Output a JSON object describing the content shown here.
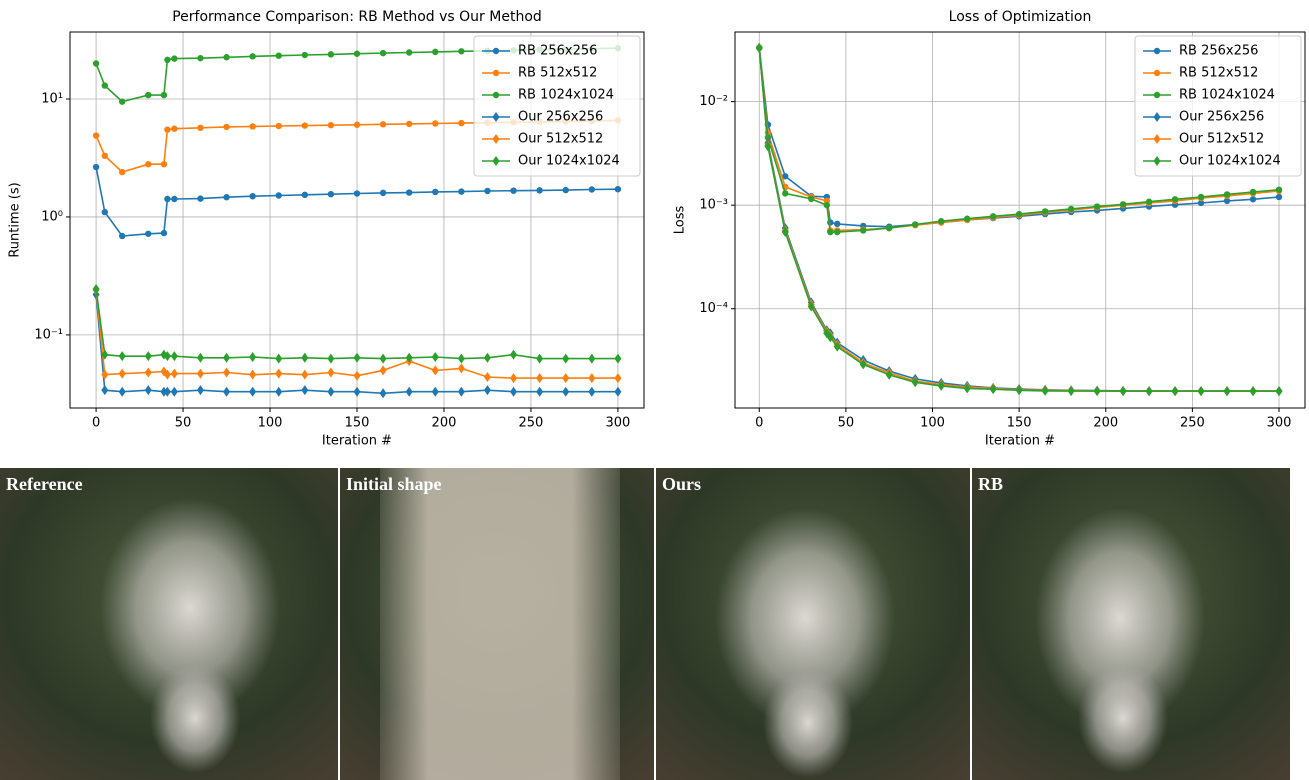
{
  "chart_data": [
    {
      "type": "line",
      "title": "Performance Comparison: RB Method vs Our Method",
      "xlabel": "Iteration #",
      "ylabel": "Runtime (s)",
      "yscale": "log",
      "grid": true,
      "legend": "upper right",
      "xlim": [
        -15,
        315
      ],
      "xticks": [
        0,
        50,
        100,
        150,
        200,
        250,
        300
      ],
      "ylim": [
        0.024,
        37
      ],
      "yticks": [
        {
          "value": 0.1,
          "label": "10⁻¹"
        },
        {
          "value": 1,
          "label": "10⁰"
        },
        {
          "value": 10,
          "label": "10¹"
        }
      ],
      "x": [
        0,
        5,
        15,
        30,
        39,
        41,
        45,
        60,
        75,
        90,
        105,
        120,
        135,
        150,
        165,
        180,
        195,
        210,
        225,
        240,
        255,
        270,
        285,
        300
      ],
      "series": [
        {
          "name": "RB 256x256",
          "color": "#1f77b4",
          "marker": "circle",
          "values": [
            2.65,
            1.1,
            0.69,
            0.72,
            0.73,
            1.42,
            1.42,
            1.43,
            1.47,
            1.5,
            1.52,
            1.54,
            1.56,
            1.58,
            1.6,
            1.61,
            1.63,
            1.64,
            1.66,
            1.67,
            1.68,
            1.69,
            1.71,
            1.72
          ]
        },
        {
          "name": "RB 512x512",
          "color": "#ff7f0e",
          "marker": "circle",
          "values": [
            4.9,
            3.3,
            2.4,
            2.8,
            2.8,
            5.5,
            5.6,
            5.7,
            5.8,
            5.85,
            5.9,
            5.95,
            6.0,
            6.05,
            6.1,
            6.15,
            6.2,
            6.25,
            6.3,
            6.35,
            6.4,
            6.45,
            6.5,
            6.6
          ]
        },
        {
          "name": "RB 1024x1024",
          "color": "#2ca02c",
          "marker": "circle",
          "values": [
            20,
            13,
            9.5,
            10.8,
            10.8,
            21.5,
            22,
            22.2,
            22.6,
            23,
            23.3,
            23.6,
            23.9,
            24.2,
            24.5,
            24.8,
            25.1,
            25.4,
            25.6,
            25.9,
            26.2,
            26.4,
            26.7,
            27
          ]
        },
        {
          "name": "Our 256x256",
          "color": "#1f77b4",
          "marker": "diamond",
          "values": [
            0.22,
            0.034,
            0.033,
            0.034,
            0.033,
            0.033,
            0.033,
            0.034,
            0.033,
            0.033,
            0.033,
            0.034,
            0.033,
            0.033,
            0.032,
            0.033,
            0.033,
            0.033,
            0.034,
            0.033,
            0.033,
            0.033,
            0.033,
            0.033
          ]
        },
        {
          "name": "Our 512x512",
          "color": "#ff7f0e",
          "marker": "diamond",
          "values": [
            0.24,
            0.046,
            0.047,
            0.048,
            0.049,
            0.046,
            0.047,
            0.047,
            0.048,
            0.046,
            0.047,
            0.046,
            0.048,
            0.045,
            0.05,
            0.06,
            0.05,
            0.052,
            0.044,
            0.043,
            0.043,
            0.043,
            0.043,
            0.043
          ]
        },
        {
          "name": "Our 1024x1024",
          "color": "#2ca02c",
          "marker": "diamond",
          "values": [
            0.245,
            0.068,
            0.066,
            0.066,
            0.068,
            0.066,
            0.066,
            0.064,
            0.064,
            0.065,
            0.063,
            0.064,
            0.063,
            0.064,
            0.063,
            0.064,
            0.065,
            0.063,
            0.064,
            0.068,
            0.063,
            0.063,
            0.063,
            0.063
          ]
        }
      ]
    },
    {
      "type": "line",
      "title": "Loss of Optimization",
      "xlabel": "Iteration #",
      "ylabel": "Loss",
      "yscale": "log",
      "grid": true,
      "legend": "upper right",
      "xlim": [
        -14,
        315
      ],
      "xticks": [
        0,
        50,
        100,
        150,
        200,
        250,
        300
      ],
      "ylim": [
        1.1e-05,
        0.047
      ],
      "yticks": [
        {
          "value": 0.0001,
          "label": "10⁻⁴"
        },
        {
          "value": 0.001,
          "label": "10⁻³"
        },
        {
          "value": 0.01,
          "label": "10⁻²"
        }
      ],
      "x": [
        0,
        5,
        15,
        30,
        39,
        41,
        45,
        60,
        75,
        90,
        105,
        120,
        135,
        150,
        165,
        180,
        195,
        210,
        225,
        240,
        255,
        270,
        285,
        300
      ],
      "series": [
        {
          "name": "RB 256x256",
          "color": "#1f77b4",
          "marker": "circle",
          "values": [
            0.033,
            0.006,
            0.0019,
            0.00122,
            0.0012,
            0.00068,
            0.00066,
            0.00063,
            0.00062,
            0.00065,
            0.00068,
            0.00072,
            0.00075,
            0.00078,
            0.00082,
            0.00086,
            0.00089,
            0.00093,
            0.00097,
            0.00101,
            0.00105,
            0.0011,
            0.00114,
            0.0012
          ]
        },
        {
          "name": "RB 512x512",
          "color": "#ff7f0e",
          "marker": "circle",
          "values": [
            0.033,
            0.005,
            0.0015,
            0.0012,
            0.0011,
            0.00057,
            0.00057,
            0.00058,
            0.0006,
            0.00064,
            0.00068,
            0.00072,
            0.00076,
            0.0008,
            0.00085,
            0.0009,
            0.00095,
            0.001,
            0.00105,
            0.0011,
            0.00117,
            0.00123,
            0.0013,
            0.00137
          ]
        },
        {
          "name": "RB 1024x1024",
          "color": "#2ca02c",
          "marker": "circle",
          "values": [
            0.033,
            0.0045,
            0.0013,
            0.00115,
            0.001,
            0.00055,
            0.00055,
            0.00057,
            0.0006,
            0.00065,
            0.0007,
            0.00074,
            0.00078,
            0.00082,
            0.00087,
            0.00092,
            0.00097,
            0.00102,
            0.00108,
            0.00114,
            0.0012,
            0.00127,
            0.00134,
            0.00141
          ]
        },
        {
          "name": "Our 256x256",
          "color": "#1f77b4",
          "marker": "diamond",
          "values": [
            0.033,
            0.004,
            0.0006,
            0.000115,
            6.2e-05,
            5.8e-05,
            4.7e-05,
            3.2e-05,
            2.5e-05,
            2.1e-05,
            1.92e-05,
            1.8e-05,
            1.72e-05,
            1.68e-05,
            1.65e-05,
            1.63e-05,
            1.62e-05,
            1.61e-05,
            1.6e-05,
            1.6e-05,
            1.6e-05,
            1.6e-05,
            1.6e-05,
            1.6e-05
          ]
        },
        {
          "name": "Our 512x512",
          "color": "#ff7f0e",
          "marker": "diamond",
          "values": [
            0.033,
            0.0038,
            0.00057,
            0.00011,
            6e-05,
            5.5e-05,
            4.5e-05,
            3e-05,
            2.4e-05,
            2e-05,
            1.85e-05,
            1.75e-05,
            1.7e-05,
            1.65e-05,
            1.63e-05,
            1.62e-05,
            1.61e-05,
            1.6e-05,
            1.6e-05,
            1.6e-05,
            1.6e-05,
            1.6e-05,
            1.6e-05,
            1.6e-05
          ]
        },
        {
          "name": "Our 1024x1024",
          "color": "#2ca02c",
          "marker": "diamond",
          "values": [
            0.033,
            0.0037,
            0.00055,
            0.000105,
            5.8e-05,
            5.3e-05,
            4.3e-05,
            2.9e-05,
            2.3e-05,
            1.95e-05,
            1.8e-05,
            1.7e-05,
            1.67e-05,
            1.63e-05,
            1.61e-05,
            1.6e-05,
            1.6e-05,
            1.6e-05,
            1.6e-05,
            1.6e-05,
            1.6e-05,
            1.6e-05,
            1.6e-05,
            1.6e-05
          ]
        }
      ]
    }
  ],
  "panels": [
    {
      "label": "Reference"
    },
    {
      "label": "Initial shape"
    },
    {
      "label": "Ours"
    },
    {
      "label": "RB"
    }
  ]
}
